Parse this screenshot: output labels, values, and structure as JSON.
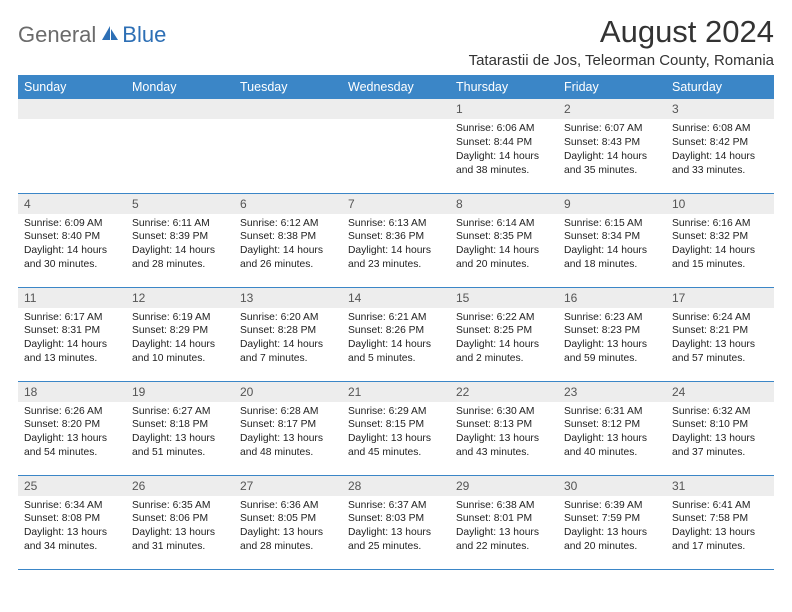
{
  "logo": {
    "general": "General",
    "blue": "Blue"
  },
  "title": "August 2024",
  "location": "Tatarastii de Jos, Teleorman County, Romania",
  "colors": {
    "header_bg": "#3b86c7",
    "header_text": "#ffffff",
    "daynum_bg": "#ededed",
    "body_text": "#222222",
    "border": "#3b86c7",
    "logo_gray": "#6b6b6b",
    "logo_blue": "#2d6fb5"
  },
  "weekdays": [
    "Sunday",
    "Monday",
    "Tuesday",
    "Wednesday",
    "Thursday",
    "Friday",
    "Saturday"
  ],
  "weeks": [
    [
      {
        "n": "",
        "sr": "",
        "ss": "",
        "dl": ""
      },
      {
        "n": "",
        "sr": "",
        "ss": "",
        "dl": ""
      },
      {
        "n": "",
        "sr": "",
        "ss": "",
        "dl": ""
      },
      {
        "n": "",
        "sr": "",
        "ss": "",
        "dl": ""
      },
      {
        "n": "1",
        "sr": "Sunrise: 6:06 AM",
        "ss": "Sunset: 8:44 PM",
        "dl": "Daylight: 14 hours and 38 minutes."
      },
      {
        "n": "2",
        "sr": "Sunrise: 6:07 AM",
        "ss": "Sunset: 8:43 PM",
        "dl": "Daylight: 14 hours and 35 minutes."
      },
      {
        "n": "3",
        "sr": "Sunrise: 6:08 AM",
        "ss": "Sunset: 8:42 PM",
        "dl": "Daylight: 14 hours and 33 minutes."
      }
    ],
    [
      {
        "n": "4",
        "sr": "Sunrise: 6:09 AM",
        "ss": "Sunset: 8:40 PM",
        "dl": "Daylight: 14 hours and 30 minutes."
      },
      {
        "n": "5",
        "sr": "Sunrise: 6:11 AM",
        "ss": "Sunset: 8:39 PM",
        "dl": "Daylight: 14 hours and 28 minutes."
      },
      {
        "n": "6",
        "sr": "Sunrise: 6:12 AM",
        "ss": "Sunset: 8:38 PM",
        "dl": "Daylight: 14 hours and 26 minutes."
      },
      {
        "n": "7",
        "sr": "Sunrise: 6:13 AM",
        "ss": "Sunset: 8:36 PM",
        "dl": "Daylight: 14 hours and 23 minutes."
      },
      {
        "n": "8",
        "sr": "Sunrise: 6:14 AM",
        "ss": "Sunset: 8:35 PM",
        "dl": "Daylight: 14 hours and 20 minutes."
      },
      {
        "n": "9",
        "sr": "Sunrise: 6:15 AM",
        "ss": "Sunset: 8:34 PM",
        "dl": "Daylight: 14 hours and 18 minutes."
      },
      {
        "n": "10",
        "sr": "Sunrise: 6:16 AM",
        "ss": "Sunset: 8:32 PM",
        "dl": "Daylight: 14 hours and 15 minutes."
      }
    ],
    [
      {
        "n": "11",
        "sr": "Sunrise: 6:17 AM",
        "ss": "Sunset: 8:31 PM",
        "dl": "Daylight: 14 hours and 13 minutes."
      },
      {
        "n": "12",
        "sr": "Sunrise: 6:19 AM",
        "ss": "Sunset: 8:29 PM",
        "dl": "Daylight: 14 hours and 10 minutes."
      },
      {
        "n": "13",
        "sr": "Sunrise: 6:20 AM",
        "ss": "Sunset: 8:28 PM",
        "dl": "Daylight: 14 hours and 7 minutes."
      },
      {
        "n": "14",
        "sr": "Sunrise: 6:21 AM",
        "ss": "Sunset: 8:26 PM",
        "dl": "Daylight: 14 hours and 5 minutes."
      },
      {
        "n": "15",
        "sr": "Sunrise: 6:22 AM",
        "ss": "Sunset: 8:25 PM",
        "dl": "Daylight: 14 hours and 2 minutes."
      },
      {
        "n": "16",
        "sr": "Sunrise: 6:23 AM",
        "ss": "Sunset: 8:23 PM",
        "dl": "Daylight: 13 hours and 59 minutes."
      },
      {
        "n": "17",
        "sr": "Sunrise: 6:24 AM",
        "ss": "Sunset: 8:21 PM",
        "dl": "Daylight: 13 hours and 57 minutes."
      }
    ],
    [
      {
        "n": "18",
        "sr": "Sunrise: 6:26 AM",
        "ss": "Sunset: 8:20 PM",
        "dl": "Daylight: 13 hours and 54 minutes."
      },
      {
        "n": "19",
        "sr": "Sunrise: 6:27 AM",
        "ss": "Sunset: 8:18 PM",
        "dl": "Daylight: 13 hours and 51 minutes."
      },
      {
        "n": "20",
        "sr": "Sunrise: 6:28 AM",
        "ss": "Sunset: 8:17 PM",
        "dl": "Daylight: 13 hours and 48 minutes."
      },
      {
        "n": "21",
        "sr": "Sunrise: 6:29 AM",
        "ss": "Sunset: 8:15 PM",
        "dl": "Daylight: 13 hours and 45 minutes."
      },
      {
        "n": "22",
        "sr": "Sunrise: 6:30 AM",
        "ss": "Sunset: 8:13 PM",
        "dl": "Daylight: 13 hours and 43 minutes."
      },
      {
        "n": "23",
        "sr": "Sunrise: 6:31 AM",
        "ss": "Sunset: 8:12 PM",
        "dl": "Daylight: 13 hours and 40 minutes."
      },
      {
        "n": "24",
        "sr": "Sunrise: 6:32 AM",
        "ss": "Sunset: 8:10 PM",
        "dl": "Daylight: 13 hours and 37 minutes."
      }
    ],
    [
      {
        "n": "25",
        "sr": "Sunrise: 6:34 AM",
        "ss": "Sunset: 8:08 PM",
        "dl": "Daylight: 13 hours and 34 minutes."
      },
      {
        "n": "26",
        "sr": "Sunrise: 6:35 AM",
        "ss": "Sunset: 8:06 PM",
        "dl": "Daylight: 13 hours and 31 minutes."
      },
      {
        "n": "27",
        "sr": "Sunrise: 6:36 AM",
        "ss": "Sunset: 8:05 PM",
        "dl": "Daylight: 13 hours and 28 minutes."
      },
      {
        "n": "28",
        "sr": "Sunrise: 6:37 AM",
        "ss": "Sunset: 8:03 PM",
        "dl": "Daylight: 13 hours and 25 minutes."
      },
      {
        "n": "29",
        "sr": "Sunrise: 6:38 AM",
        "ss": "Sunset: 8:01 PM",
        "dl": "Daylight: 13 hours and 22 minutes."
      },
      {
        "n": "30",
        "sr": "Sunrise: 6:39 AM",
        "ss": "Sunset: 7:59 PM",
        "dl": "Daylight: 13 hours and 20 minutes."
      },
      {
        "n": "31",
        "sr": "Sunrise: 6:41 AM",
        "ss": "Sunset: 7:58 PM",
        "dl": "Daylight: 13 hours and 17 minutes."
      }
    ]
  ]
}
